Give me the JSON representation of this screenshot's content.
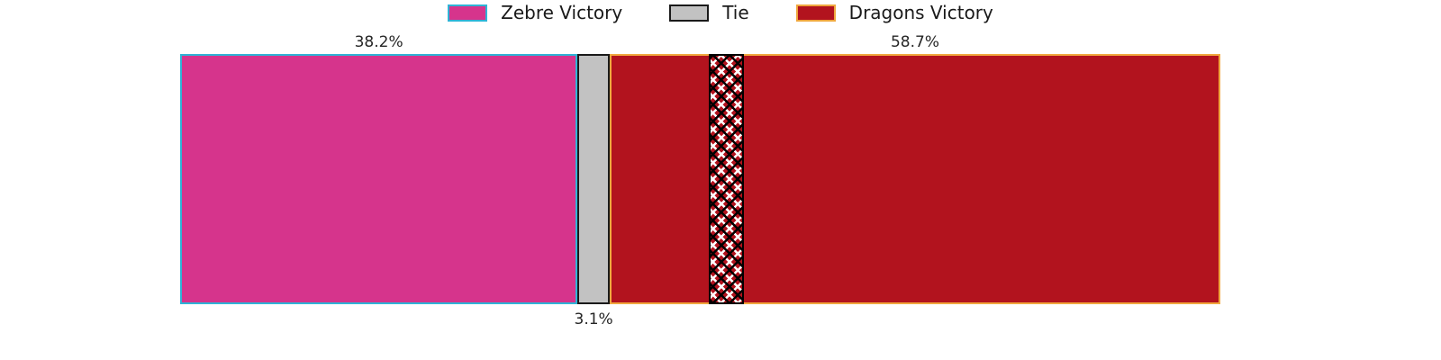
{
  "figure": {
    "background": "#ffffff"
  },
  "legend": {
    "position": "top-center",
    "items": [
      {
        "label": "Zebre Victory",
        "fill": "#d6348c",
        "edge": "#2fb3d6"
      },
      {
        "label": "Tie",
        "fill": "#c2c2c2",
        "edge": "#1a1a1a"
      },
      {
        "label": "Dragons Victory",
        "fill": "#b2131e",
        "edge": "#f0a73e"
      }
    ]
  },
  "chart_data": {
    "type": "bar",
    "orientation": "horizontal-stacked",
    "title": "",
    "xlabel": "",
    "ylabel": "",
    "xlim": [
      0,
      100
    ],
    "axes_visible": false,
    "grid": false,
    "legend_position": "top-center",
    "categories": [
      "Zebre Victory",
      "Tie",
      "Dragons Victory"
    ],
    "values": [
      38.2,
      3.1,
      58.7
    ],
    "segments": [
      {
        "name": "Zebre Victory",
        "value_pct": 38.2,
        "label": "38.2%",
        "label_position": "above",
        "fill": "#d6348c",
        "edge": "#2fb3d6"
      },
      {
        "name": "Tie",
        "value_pct": 3.1,
        "label": "3.1%",
        "label_position": "below",
        "fill": "#c2c2c2",
        "edge": "#1a1a1a"
      },
      {
        "name": "Dragons Victory",
        "value_pct": 58.7,
        "label": "58.7%",
        "label_position": "above",
        "fill": "#b2131e",
        "edge": "#f0a73e"
      }
    ],
    "hatch_band": {
      "left_pct": 50.8,
      "width_pct": 3.4,
      "fill": "#b2131e",
      "edge": "#000000",
      "hatch_colors": [
        "#000000",
        "#ffffff"
      ],
      "hatch_style": "crosshatch-xx"
    }
  }
}
